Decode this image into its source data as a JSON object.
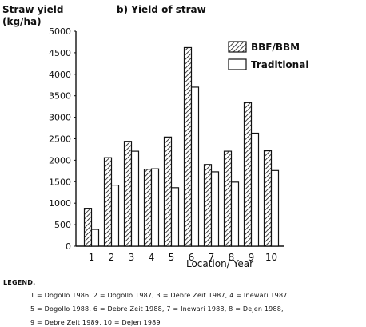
{
  "chart_data": {
    "type": "bar",
    "title": "b) Yield of straw",
    "ylabel_line1": "Straw yield",
    "ylabel_line2": "(kg/ha)",
    "xlabel": "Location/ Year",
    "categories": [
      "1",
      "2",
      "3",
      "4",
      "5",
      "6",
      "7",
      "8",
      "9",
      "10"
    ],
    "ylim": [
      0,
      5000
    ],
    "yticks": [
      "0",
      "500",
      "1000",
      "1500",
      "2000",
      "2500",
      "3000",
      "3500",
      "4000",
      "4500",
      "5000"
    ],
    "series": [
      {
        "name": "BBF/BBM",
        "values": [
          880,
          2060,
          2440,
          1790,
          2540,
          4620,
          1900,
          2210,
          3340,
          2220
        ],
        "fill": "hatched"
      },
      {
        "name": "Traditional",
        "values": [
          390,
          1420,
          2210,
          1800,
          1360,
          3700,
          1730,
          1490,
          2630,
          1760
        ],
        "fill": "white"
      }
    ],
    "legend_position": "top-right",
    "grid": false
  },
  "legend_block": {
    "title": "LEGEND.",
    "line1": "1 = Dogollo 1986, 2 = Dogollo 1987, 3 = Debre Zeit 1987, 4 = Inewari 1987,",
    "line2": "5 = Dogollo 1988, 6 = Debre Zeit 1988, 7 = Inewari 1988, 8 = Dejen 1988,",
    "line3": "9 = Debre Zeit 1989, 10 = Dejen 1989"
  }
}
